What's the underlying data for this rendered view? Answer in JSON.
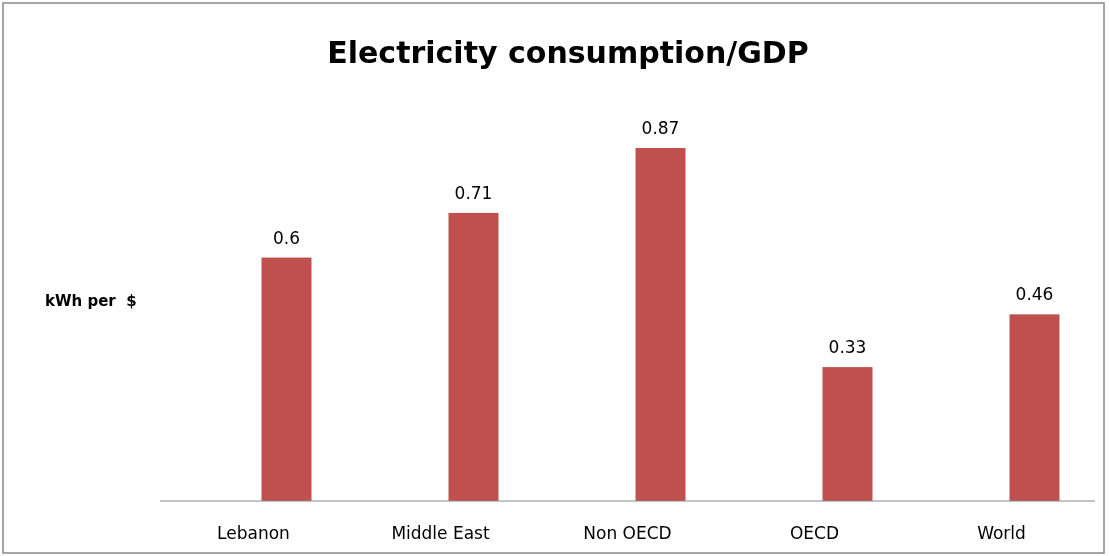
{
  "chart_data": {
    "type": "bar",
    "title": "Electricity consumption/GDP",
    "ylabel": "kWh per  $",
    "categories": [
      "Lebanon",
      "Middle East",
      "Non OECD",
      "OECD",
      "World"
    ],
    "values": [
      0.6,
      0.71,
      0.87,
      0.33,
      0.46
    ],
    "color": "#c0504d",
    "data_labels": true
  }
}
